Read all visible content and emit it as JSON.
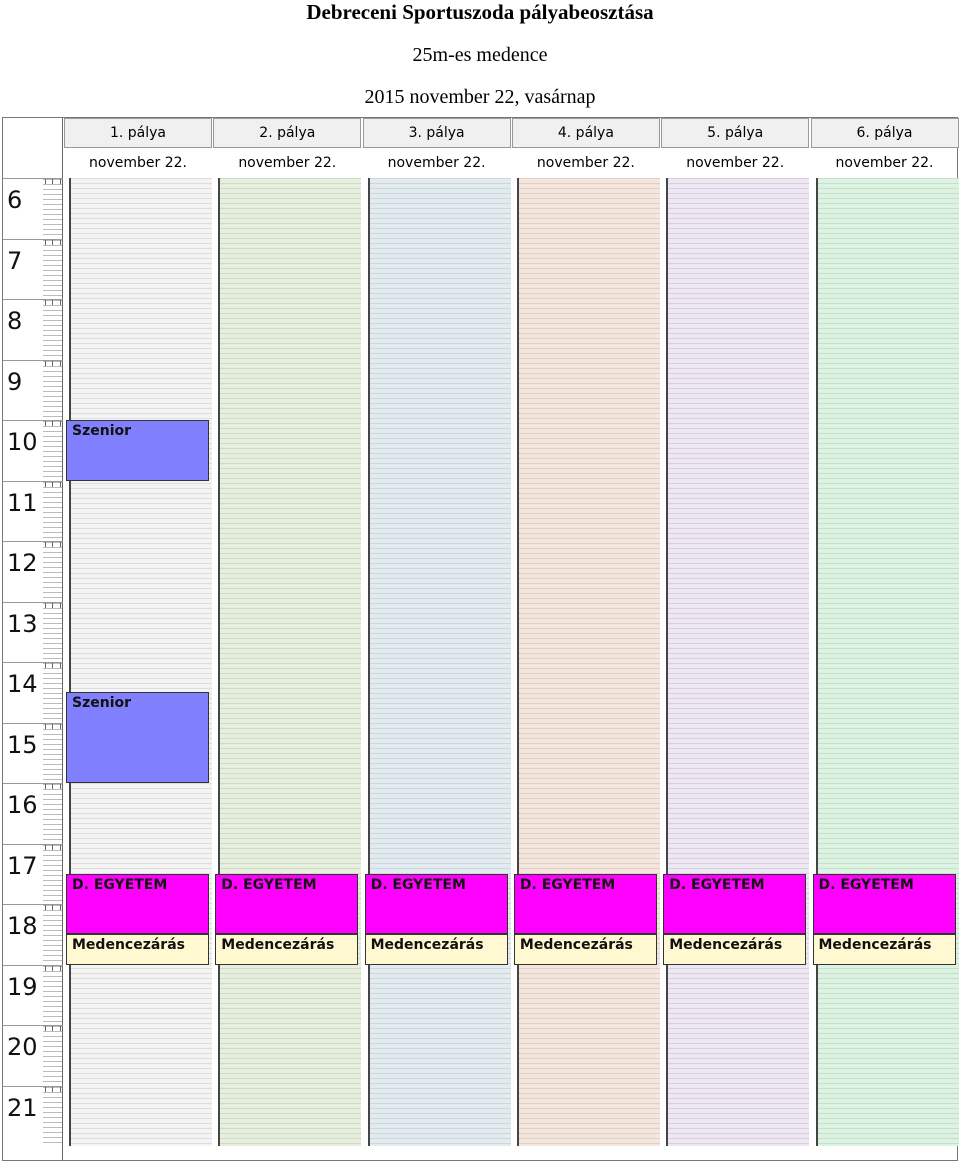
{
  "header": {
    "title": "Debreceni Sportuszoda pályabeosztása",
    "subtitle": "25m-es medence",
    "date": "2015 november 22, vasárnap"
  },
  "hours": [
    "6",
    "7",
    "8",
    "9",
    "10",
    "11",
    "12",
    "13",
    "14",
    "15",
    "16",
    "17",
    "18",
    "19",
    "20",
    "21"
  ],
  "lanes": [
    {
      "name": "1. pálya",
      "date": "november 22.",
      "color": "#f3f3f3"
    },
    {
      "name": "2. pálya",
      "date": "november 22.",
      "color": "#e6eedd"
    },
    {
      "name": "3. pálya",
      "date": "november 22.",
      "color": "#e2ebef"
    },
    {
      "name": "4. pálya",
      "date": "november 22.",
      "color": "#f5e6dd"
    },
    {
      "name": "5. pálya",
      "date": "november 22.",
      "color": "#ede6f3"
    },
    {
      "name": "6. pálya",
      "date": "november 22.",
      "color": "#ddf3e2"
    }
  ],
  "events": [
    {
      "lane": 0,
      "label": "Szenior",
      "start": "10:00",
      "end": "11:00",
      "color": "#8080ff"
    },
    {
      "lane": 0,
      "label": "Szenior",
      "start": "14:30",
      "end": "16:00",
      "color": "#8080ff"
    },
    {
      "lane": 0,
      "label": "D. EGYETEM",
      "start": "17:30",
      "end": "18:30",
      "color": "#ff00ff"
    },
    {
      "lane": 1,
      "label": "D. EGYETEM",
      "start": "17:30",
      "end": "18:30",
      "color": "#ff00ff"
    },
    {
      "lane": 2,
      "label": "D. EGYETEM",
      "start": "17:30",
      "end": "18:30",
      "color": "#ff00ff"
    },
    {
      "lane": 3,
      "label": "D. EGYETEM",
      "start": "17:30",
      "end": "18:30",
      "color": "#ff00ff"
    },
    {
      "lane": 4,
      "label": "D. EGYETEM",
      "start": "17:30",
      "end": "18:30",
      "color": "#ff00ff"
    },
    {
      "lane": 5,
      "label": "D. EGYETEM",
      "start": "17:30",
      "end": "18:30",
      "color": "#ff00ff"
    },
    {
      "lane": 0,
      "label": "Medencezárás",
      "start": "18:30",
      "end": "19:00",
      "color": "#fff8d0"
    },
    {
      "lane": 1,
      "label": "Medencezárás",
      "start": "18:30",
      "end": "19:00",
      "color": "#fff8d0"
    },
    {
      "lane": 2,
      "label": "Medencezárás",
      "start": "18:30",
      "end": "19:00",
      "color": "#fff8d0"
    },
    {
      "lane": 3,
      "label": "Medencezárás",
      "start": "18:30",
      "end": "19:00",
      "color": "#fff8d0"
    },
    {
      "lane": 4,
      "label": "Medencezárás",
      "start": "18:30",
      "end": "19:00",
      "color": "#fff8d0"
    },
    {
      "lane": 5,
      "label": "Medencezárás",
      "start": "18:30",
      "end": "19:00",
      "color": "#fff8d0"
    }
  ]
}
